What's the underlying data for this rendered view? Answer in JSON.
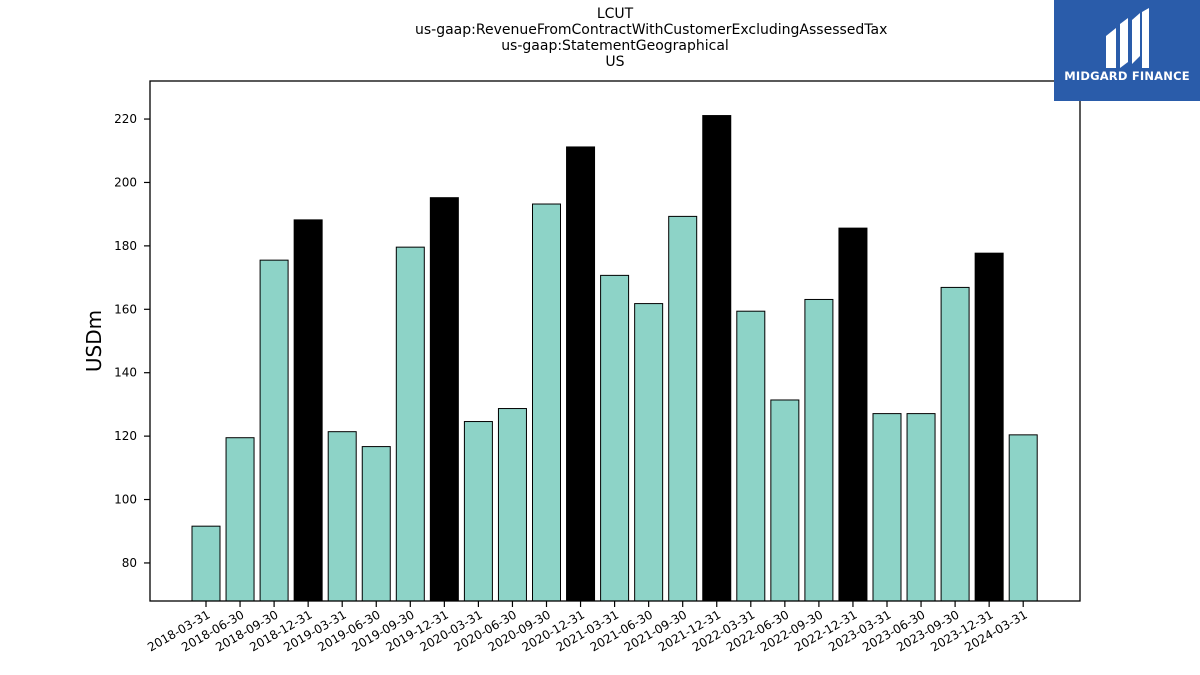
{
  "chart_data": {
    "type": "bar",
    "title_lines": [
      "LCUT",
      "us-gaap:RevenueFromContractWithCustomerExcludingAssessedTax",
      "us-gaap:StatementGeographical",
      "US"
    ],
    "xlabel": "",
    "ylabel": "USDm",
    "ylim": [
      68,
      232
    ],
    "yticks": [
      80,
      100,
      120,
      140,
      160,
      180,
      200,
      220
    ],
    "grid": false,
    "categories": [
      "2018-03-31",
      "2018-06-30",
      "2018-09-30",
      "2018-12-31",
      "2019-03-31",
      "2019-06-30",
      "2019-09-30",
      "2019-12-31",
      "2020-03-31",
      "2020-06-30",
      "2020-09-30",
      "2020-12-31",
      "2021-03-31",
      "2021-06-30",
      "2021-09-30",
      "2021-12-31",
      "2022-03-31",
      "2022-06-30",
      "2022-09-30",
      "2022-12-31",
      "2023-03-31",
      "2023-06-30",
      "2023-09-30",
      "2023-12-31",
      "2024-03-31"
    ],
    "values": [
      91.6,
      119.5,
      175.5,
      188.2,
      121.4,
      116.7,
      179.6,
      195.2,
      124.6,
      128.7,
      193.2,
      211.2,
      170.7,
      161.8,
      189.3,
      221.1,
      159.4,
      131.4,
      163.1,
      185.6,
      127.1,
      127.1,
      166.9,
      177.7,
      120.4
    ],
    "bar_colors": [
      "#8dd3c7",
      "#8dd3c7",
      "#8dd3c7",
      "#000000",
      "#8dd3c7",
      "#8dd3c7",
      "#8dd3c7",
      "#000000",
      "#8dd3c7",
      "#8dd3c7",
      "#8dd3c7",
      "#000000",
      "#8dd3c7",
      "#8dd3c7",
      "#8dd3c7",
      "#000000",
      "#8dd3c7",
      "#8dd3c7",
      "#8dd3c7",
      "#000000",
      "#8dd3c7",
      "#8dd3c7",
      "#8dd3c7",
      "#000000",
      "#8dd3c7"
    ]
  },
  "logo": {
    "text": "MIDGARD FINANCE",
    "background": "#2a5caa"
  }
}
